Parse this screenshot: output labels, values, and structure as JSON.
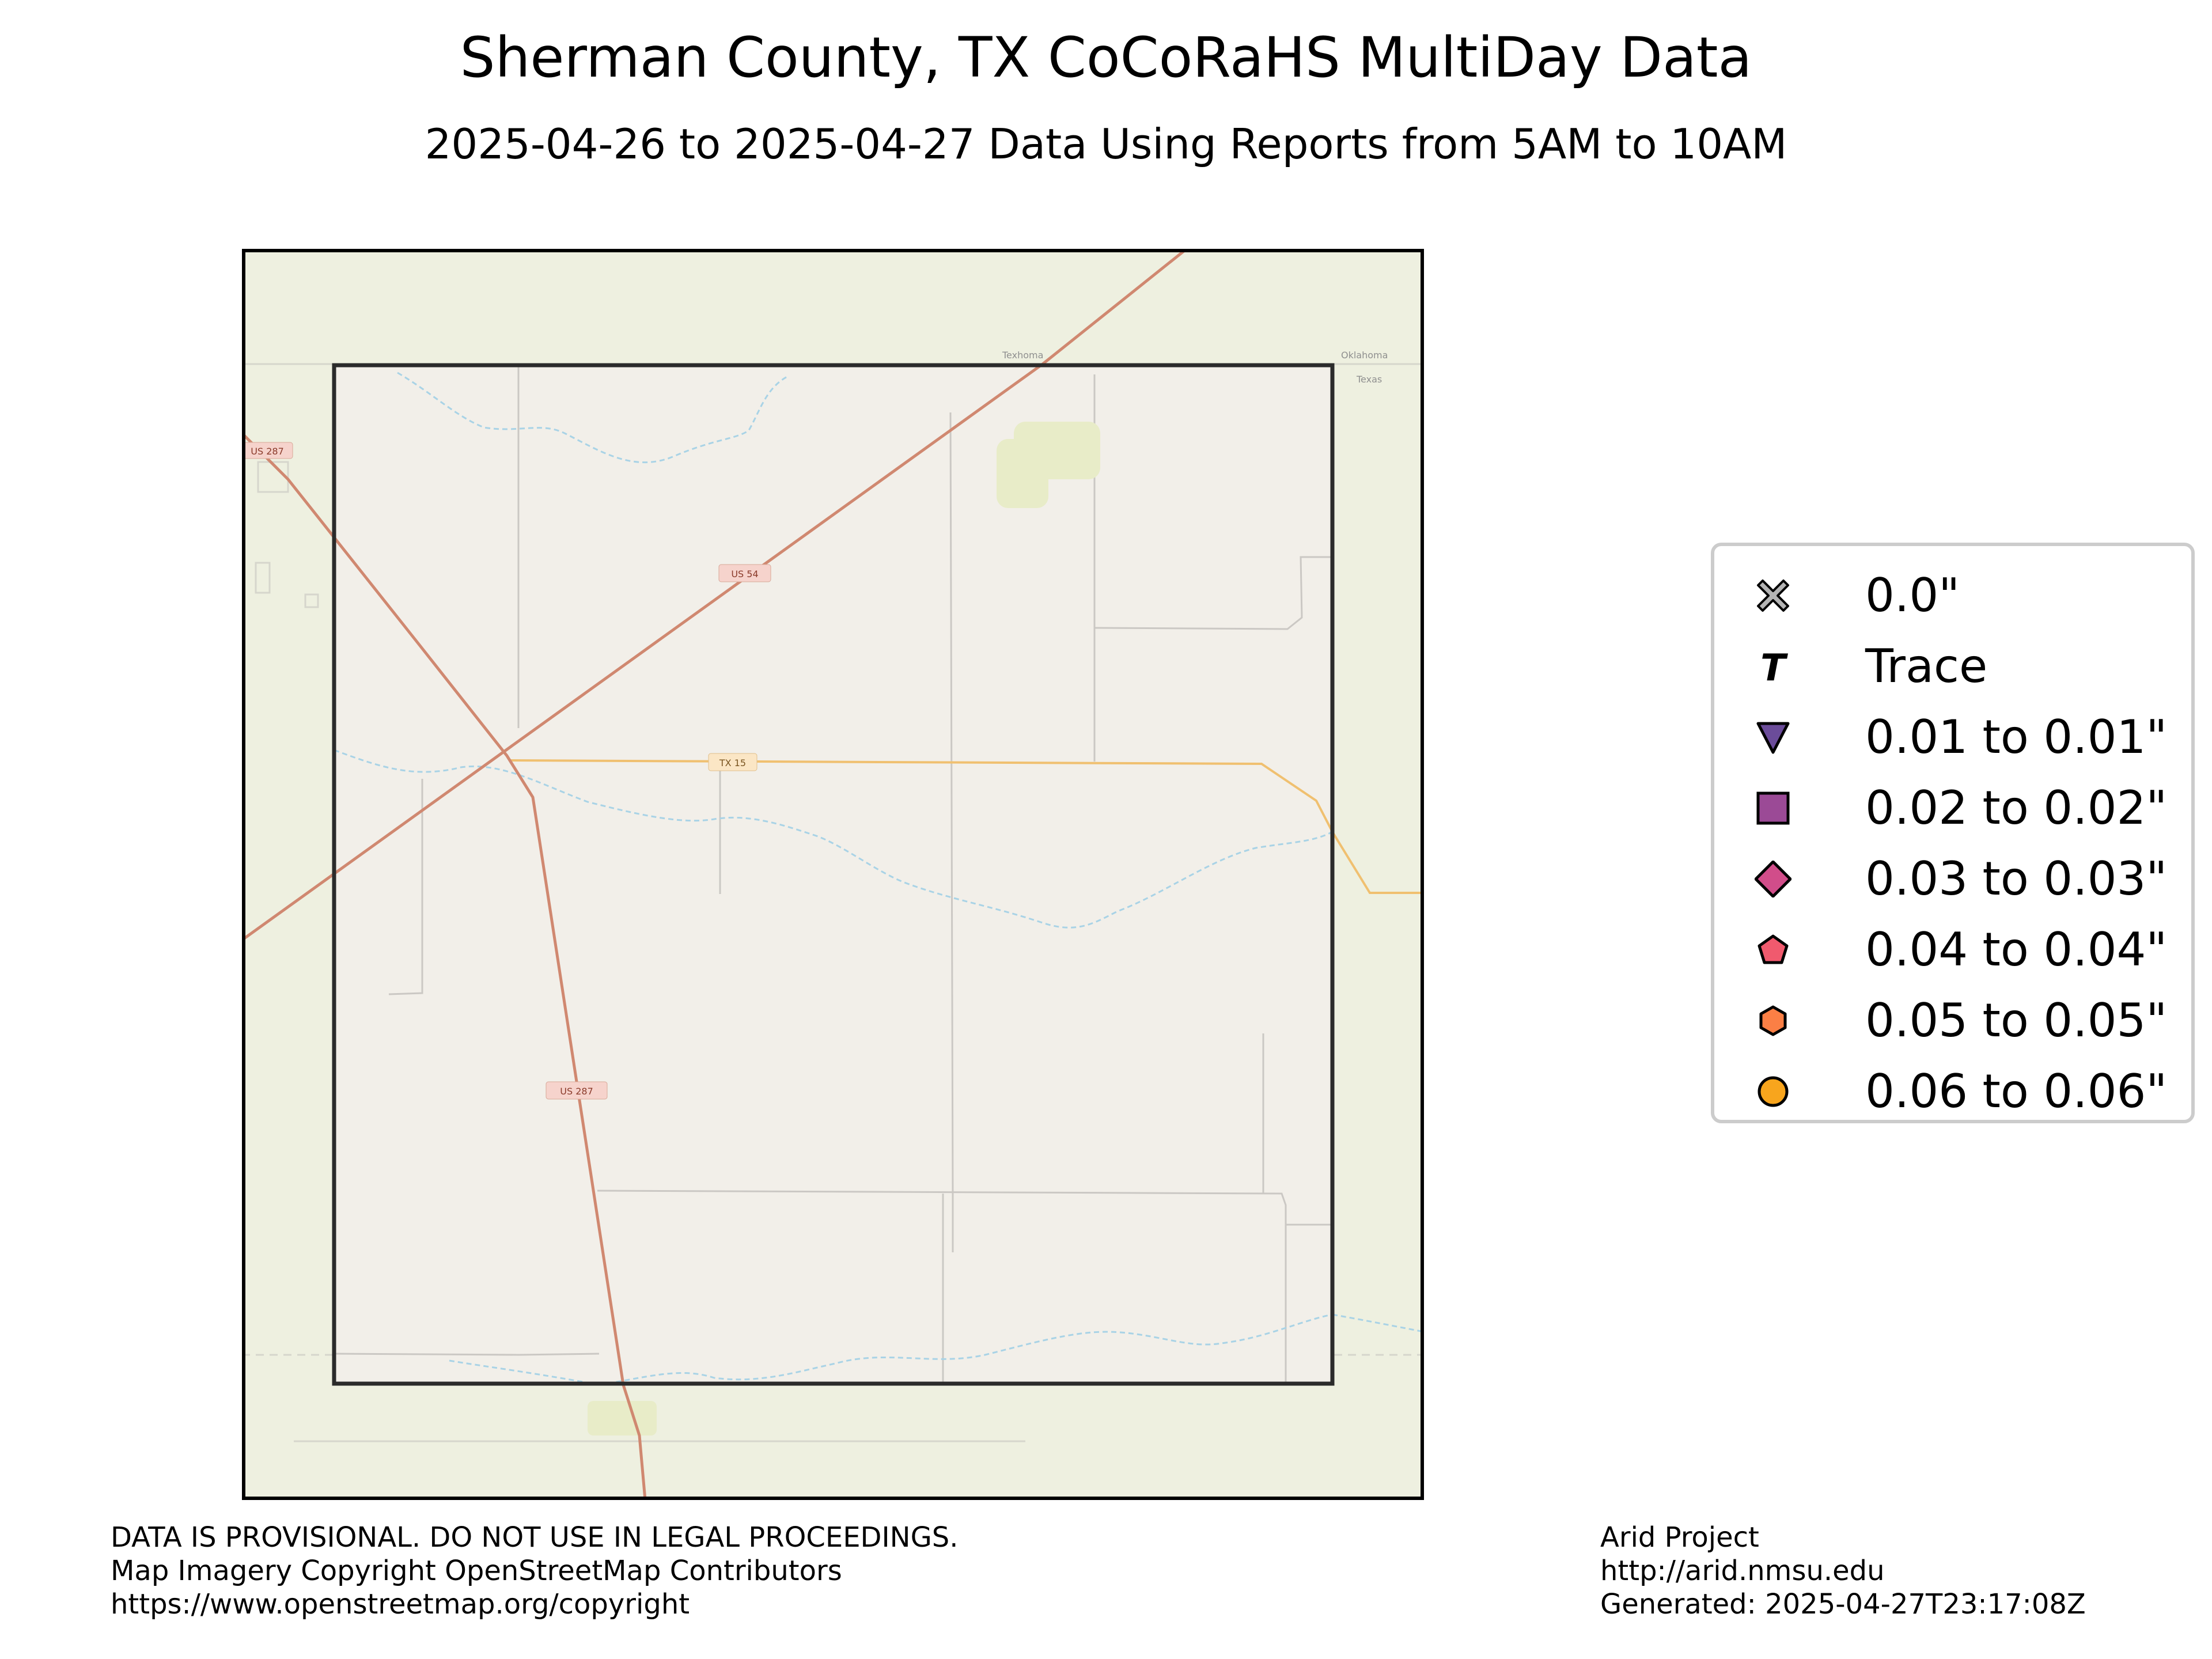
{
  "title": "Sherman County, TX CoCoRaHS MultiDay Data",
  "subtitle": "2025-04-26 to 2025-04-27 Data Using Reports from 5AM to 10AM",
  "map": {
    "place_labels": {
      "texhoma": "Texhoma",
      "oklahoma": "Oklahoma",
      "texas": "Texas"
    },
    "road_labels": {
      "us54": "US 54",
      "tx15": "TX 15",
      "us287": "US 287",
      "us287_nw": "US 287"
    },
    "colors": {
      "background_land": "#eef0e0",
      "county_fill": "#f2efe9",
      "county_border": "#2b2b2b",
      "us_highway": "#d08870",
      "state_highway": "#f0c070",
      "minor_road": "#c8c8c8",
      "stream": "#a9d3e6"
    }
  },
  "legend": {
    "items": [
      {
        "label": "0.0\"",
        "symbol": "x-icon",
        "color": "#b4b4b4"
      },
      {
        "label": "Trace",
        "symbol": "t-icon",
        "color": "#000000"
      },
      {
        "label": "0.01 to 0.01\"",
        "symbol": "triangle-down-icon",
        "color": "#6b4c9a"
      },
      {
        "label": "0.02 to 0.02\"",
        "symbol": "square-icon",
        "color": "#9b4a96"
      },
      {
        "label": "0.03 to 0.03\"",
        "symbol": "diamond-icon",
        "color": "#d14d8a"
      },
      {
        "label": "0.04 to 0.04\"",
        "symbol": "pentagon-icon",
        "color": "#f05a6e"
      },
      {
        "label": "0.05 to 0.05\"",
        "symbol": "hexagon-icon",
        "color": "#fb7f45"
      },
      {
        "label": "0.06 to 0.06\"",
        "symbol": "circle-icon",
        "color": "#f8a51d"
      }
    ]
  },
  "footer": {
    "left": [
      "DATA IS PROVISIONAL. DO NOT USE IN LEGAL PROCEEDINGS.",
      "Map Imagery Copyright OpenStreetMap Contributors",
      "https://www.openstreetmap.org/copyright"
    ],
    "right": [
      "Arid Project",
      "http://arid.nmsu.edu",
      "Generated: 2025-04-27T23:17:08Z"
    ]
  }
}
